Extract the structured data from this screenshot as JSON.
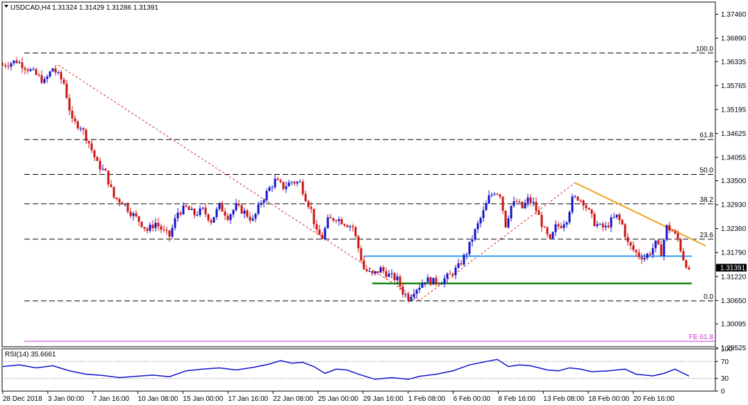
{
  "header": {
    "symbol": "USDCAD,H4",
    "ohlc": "1.31324 1.31429 1.31286 1.31391"
  },
  "price_badge": "1.31391",
  "colors": {
    "bull": "#1010cc",
    "bear": "#cc1010",
    "trend_dashed": "#dd2222",
    "resistance_line": "#f0a020",
    "support_blue": "#3399ee",
    "support_green": "#118811",
    "fe_line": "#cc33cc",
    "rsi_line": "#1010cc"
  },
  "chart_data": [
    {
      "type": "line",
      "title": "",
      "series_style": "candlestick",
      "ylim": [
        1.2955,
        1.3775
      ],
      "ytick_labels": [
        "1.37460",
        "1.36890",
        "1.36335",
        "1.35765",
        "1.35195",
        "1.34625",
        "1.34055",
        "1.33500",
        "1.32930",
        "1.32360",
        "1.31790",
        "1.31220",
        "1.30650",
        "1.30095",
        "1.29525"
      ],
      "yticks": [
        1.3746,
        1.3689,
        1.36335,
        1.35765,
        1.35195,
        1.34625,
        1.34055,
        1.335,
        1.3293,
        1.3236,
        1.3179,
        1.3122,
        1.3065,
        1.30095,
        1.29525
      ],
      "x_labels": [
        "28 Dec 2018",
        "3 Jan 00:00",
        "7 Jan 16:00",
        "10 Jan 08:00",
        "15 Jan 00:00",
        "17 Jan 16:00",
        "22 Jan 08:00",
        "25 Jan 00:00",
        "29 Jan 16:00",
        "1 Feb 08:00",
        "6 Feb 00:00",
        "8 Feb 16:00",
        "13 Feb 08:00",
        "18 Feb 00:00",
        "20 Feb 16:00"
      ],
      "close_path": [
        [
          0,
          1.3625
        ],
        [
          5,
          1.3635
        ],
        [
          10,
          1.3612
        ],
        [
          15,
          1.3585
        ],
        [
          18,
          1.3618
        ],
        [
          22,
          1.3582
        ],
        [
          25,
          1.349
        ],
        [
          28,
          1.348
        ],
        [
          31,
          1.344
        ],
        [
          34,
          1.339
        ],
        [
          37,
          1.3368
        ],
        [
          40,
          1.331
        ],
        [
          43,
          1.33
        ],
        [
          46,
          1.3275
        ],
        [
          49,
          1.3255
        ],
        [
          52,
          1.3232
        ],
        [
          55,
          1.325
        ],
        [
          58,
          1.3228
        ],
        [
          60,
          1.3218
        ],
        [
          63,
          1.3275
        ],
        [
          66,
          1.3285
        ],
        [
          69,
          1.327
        ],
        [
          72,
          1.328
        ],
        [
          75,
          1.3255
        ],
        [
          78,
          1.329
        ],
        [
          81,
          1.3265
        ],
        [
          84,
          1.3288
        ],
        [
          87,
          1.3275
        ],
        [
          90,
          1.3255
        ],
        [
          93,
          1.33
        ],
        [
          96,
          1.3332
        ],
        [
          98,
          1.335
        ],
        [
          101,
          1.3335
        ],
        [
          104,
          1.3348
        ],
        [
          107,
          1.3345
        ],
        [
          109,
          1.331
        ],
        [
          111,
          1.328
        ],
        [
          113,
          1.3225
        ],
        [
          115,
          1.3215
        ],
        [
          117,
          1.3255
        ],
        [
          120,
          1.3262
        ],
        [
          123,
          1.325
        ],
        [
          126,
          1.324
        ],
        [
          128,
          1.319
        ],
        [
          130,
          1.314
        ],
        [
          133,
          1.3125
        ],
        [
          136,
          1.314
        ],
        [
          139,
          1.3125
        ],
        [
          142,
          1.3115
        ],
        [
          144,
          1.3085
        ],
        [
          146,
          1.3072
        ],
        [
          148,
          1.309
        ],
        [
          150,
          1.31
        ],
        [
          152,
          1.3115
        ],
        [
          155,
          1.311
        ],
        [
          158,
          1.3112
        ],
        [
          161,
          1.3125
        ],
        [
          164,
          1.3145
        ],
        [
          167,
          1.318
        ],
        [
          170,
          1.323
        ],
        [
          173,
          1.3275
        ],
        [
          175,
          1.331
        ],
        [
          177,
          1.3325
        ],
        [
          179,
          1.3318
        ],
        [
          181,
          1.3245
        ],
        [
          183,
          1.329
        ],
        [
          185,
          1.33
        ],
        [
          187,
          1.3285
        ],
        [
          189,
          1.3305
        ],
        [
          191,
          1.3295
        ],
        [
          193,
          1.3265
        ],
        [
          195,
          1.323
        ],
        [
          197,
          1.3205
        ],
        [
          199,
          1.324
        ],
        [
          201,
          1.3245
        ],
        [
          203,
          1.326
        ],
        [
          205,
          1.3305
        ],
        [
          207,
          1.331
        ],
        [
          209,
          1.33
        ],
        [
          211,
          1.3275
        ],
        [
          213,
          1.325
        ],
        [
          215,
          1.324
        ],
        [
          217,
          1.3238
        ],
        [
          219,
          1.3255
        ],
        [
          221,
          1.3265
        ],
        [
          223,
          1.3245
        ],
        [
          225,
          1.32
        ],
        [
          227,
          1.3185
        ],
        [
          229,
          1.3172
        ],
        [
          231,
          1.3168
        ],
        [
          233,
          1.318
        ],
        [
          235,
          1.32
        ],
        [
          237,
          1.318
        ],
        [
          239,
          1.324
        ],
        [
          241,
          1.323
        ],
        [
          243,
          1.321
        ],
        [
          245,
          1.3165
        ],
        [
          247,
          1.3139
        ]
      ],
      "levels": [
        {
          "label": "100.0",
          "value": 1.3654
        },
        {
          "label": "61.8",
          "value": 1.3448
        },
        {
          "label": "50.0",
          "value": 1.3365
        },
        {
          "label": "38.2",
          "value": 1.3295
        },
        {
          "label": "23.6",
          "value": 1.3211
        },
        {
          "label": "0.0",
          "value": 1.3064
        },
        {
          "label": "FE 61.8",
          "value": 1.2968
        }
      ],
      "support_blue": {
        "from": [
          130,
          1.31705
        ],
        "to": [
          248,
          1.31705
        ]
      },
      "support_green": {
        "from": [
          133,
          1.31055
        ],
        "to": [
          248,
          1.31055
        ]
      },
      "resistance_line": {
        "from": [
          206,
          1.3345
        ],
        "to": [
          253,
          1.3195
        ]
      },
      "trend_dashed": [
        [
          20,
          1.3625
        ],
        [
          150,
          1.3065
        ],
        [
          206,
          1.3345
        ]
      ]
    },
    {
      "type": "line",
      "title": "",
      "label": "RSI(14) 35.6661",
      "ylim": [
        0,
        100
      ],
      "yticks": [
        100,
        70,
        30,
        0
      ],
      "ytick_labels": [
        "100",
        "70",
        "30",
        "0"
      ],
      "values_path": [
        [
          0,
          58
        ],
        [
          6,
          62
        ],
        [
          12,
          55
        ],
        [
          18,
          60
        ],
        [
          24,
          48
        ],
        [
          30,
          40
        ],
        [
          36,
          37
        ],
        [
          42,
          32
        ],
        [
          48,
          35
        ],
        [
          54,
          38
        ],
        [
          60,
          34
        ],
        [
          66,
          48
        ],
        [
          72,
          52
        ],
        [
          78,
          55
        ],
        [
          84,
          50
        ],
        [
          90,
          56
        ],
        [
          96,
          64
        ],
        [
          100,
          72
        ],
        [
          104,
          66
        ],
        [
          108,
          68
        ],
        [
          112,
          58
        ],
        [
          116,
          42
        ],
        [
          120,
          52
        ],
        [
          124,
          50
        ],
        [
          128,
          40
        ],
        [
          134,
          28
        ],
        [
          140,
          32
        ],
        [
          146,
          28
        ],
        [
          150,
          35
        ],
        [
          156,
          40
        ],
        [
          162,
          48
        ],
        [
          168,
          62
        ],
        [
          174,
          70
        ],
        [
          178,
          75
        ],
        [
          182,
          58
        ],
        [
          186,
          62
        ],
        [
          190,
          60
        ],
        [
          196,
          50
        ],
        [
          200,
          48
        ],
        [
          204,
          55
        ],
        [
          208,
          52
        ],
        [
          212,
          46
        ],
        [
          218,
          48
        ],
        [
          224,
          52
        ],
        [
          228,
          40
        ],
        [
          234,
          36
        ],
        [
          238,
          42
        ],
        [
          242,
          52
        ],
        [
          245,
          42
        ],
        [
          247,
          35.7
        ]
      ]
    }
  ]
}
